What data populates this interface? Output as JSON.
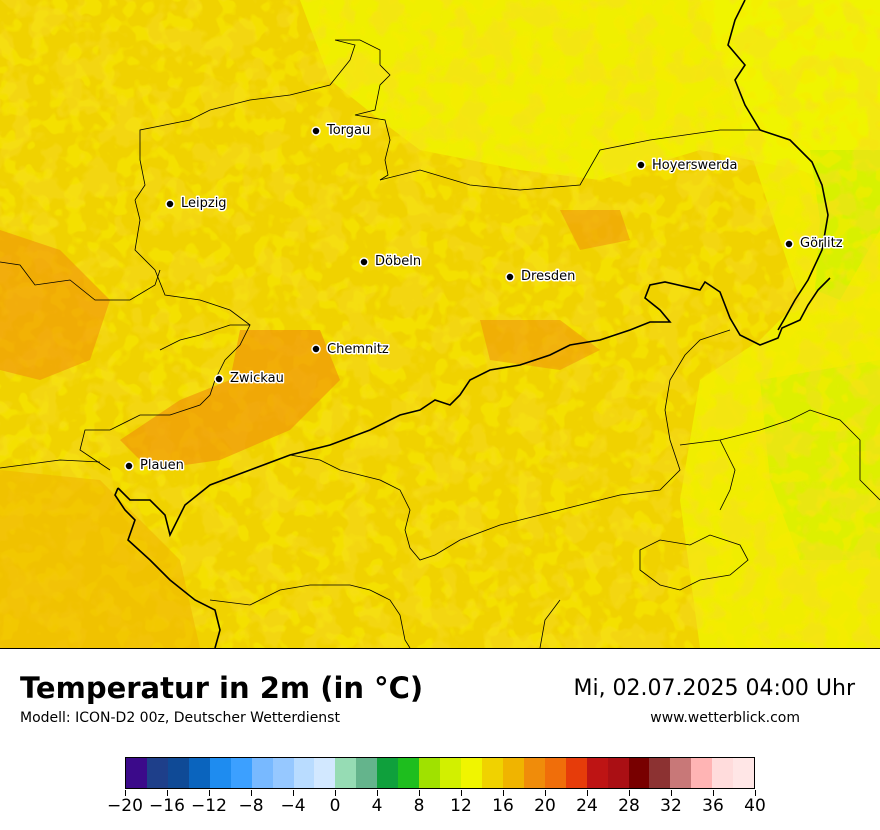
{
  "title": "Temperatur in 2m (in °C)",
  "model": "Modell: ICON-D2 00z, Deutscher Wetterdienst",
  "datetime": "Mi, 02.07.2025 04:00 Uhr",
  "website": "www.wetterblick.com",
  "cities": [
    {
      "name": "Torgau"
    },
    {
      "name": "Hoyerswerda"
    },
    {
      "name": "Leipzig"
    },
    {
      "name": "Görlitz"
    },
    {
      "name": "Döbeln"
    },
    {
      "name": "Dresden"
    },
    {
      "name": "Chemnitz"
    },
    {
      "name": "Zwickau"
    },
    {
      "name": "Plauen"
    }
  ],
  "legend": {
    "min": -20,
    "max": 40,
    "step": 2,
    "colors": [
      "#3b0a8a",
      "#1e3f8a",
      "#0f4a96",
      "#0a64be",
      "#1e8cf0",
      "#3ca0ff",
      "#78b9ff",
      "#96c8ff",
      "#b9dcff",
      "#d2e8ff",
      "#96dcb4",
      "#64b48c",
      "#0fa03c",
      "#1ebe1e",
      "#a0e100",
      "#d2f000",
      "#f0f500",
      "#f0d200",
      "#f0b400",
      "#f08c0a",
      "#f06e0a",
      "#e63c0a",
      "#be1414",
      "#aa0f14",
      "#780000",
      "#8c3232",
      "#c87878",
      "#ffb4b4",
      "#ffdcdc",
      "#ffe6e6"
    ],
    "tick_labels": [
      "−20",
      "−16",
      "−12",
      "−8",
      "−4",
      "0",
      "4",
      "8",
      "12",
      "16",
      "20",
      "24",
      "28",
      "32",
      "36",
      "40"
    ]
  }
}
